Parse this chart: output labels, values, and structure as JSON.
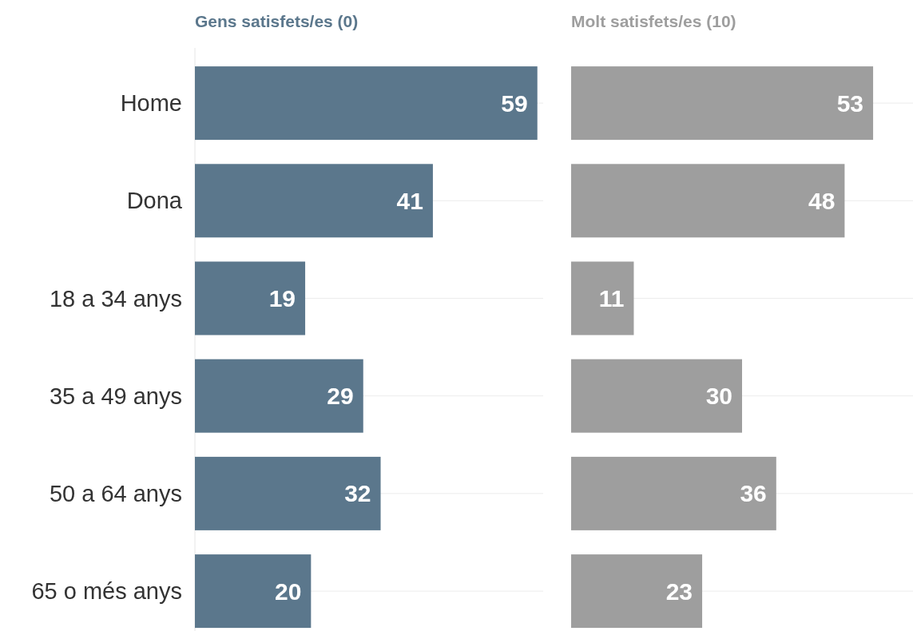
{
  "chart_data": [
    {
      "type": "bar",
      "orientation": "horizontal",
      "title": "Gens satisfets/es (0)",
      "categories": [
        "Home",
        "Dona",
        "18 a 34 anys",
        "35 a 49 anys",
        "50 a 64 anys",
        "65 o més anys"
      ],
      "series": [
        {
          "color": "#5b778c",
          "values": [
            59,
            41,
            19,
            29,
            32,
            20
          ]
        }
      ],
      "xlim": [
        0,
        60
      ],
      "data_labels": true,
      "grid": "y",
      "tick_labels": "y"
    },
    {
      "type": "bar",
      "orientation": "horizontal",
      "title": "Molt satisfets/es (10)",
      "categories": [
        null,
        null,
        null,
        null,
        null,
        null
      ],
      "series": [
        {
          "color": "#9e9e9e",
          "values": [
            53,
            48,
            11,
            30,
            36,
            23
          ]
        }
      ],
      "xlim": [
        0,
        60
      ],
      "data_labels": true,
      "grid": "y",
      "tick_labels": false
    }
  ]
}
